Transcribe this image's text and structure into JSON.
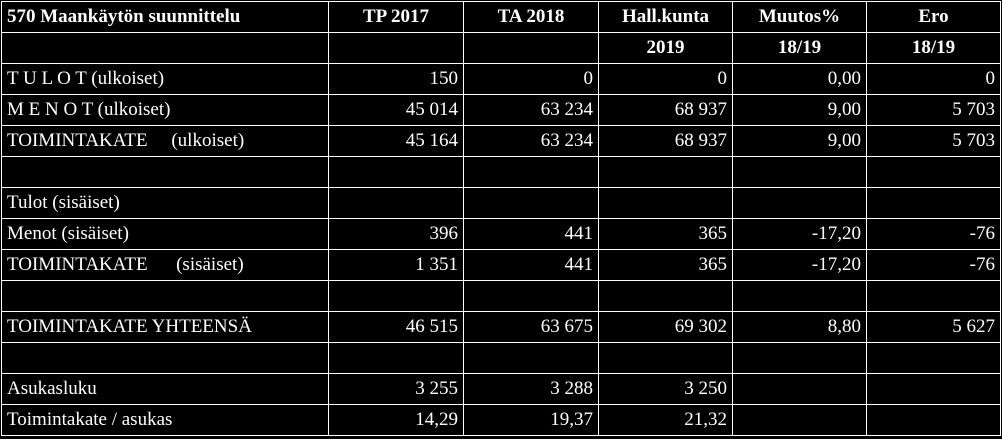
{
  "header_row1": {
    "title": "570 Maankäytön suunnittelu",
    "col1": "TP 2017",
    "col2": "TA 2018",
    "col3": "Hall.kunta",
    "col4": "Muutos%",
    "col5": "Ero"
  },
  "header_row2": {
    "col3": "2019",
    "col4": "18/19",
    "col5": "18/19"
  },
  "rows": [
    {
      "label": "T U L O T (ulkoiset)",
      "tp2017": "150",
      "ta2018": "0",
      "hall": "0",
      "muutos": "0,00",
      "ero": "0"
    },
    {
      "label": "M E N O T (ulkoiset)",
      "tp2017": "45 014",
      "ta2018": "63 234",
      "hall": "68 937",
      "muutos": "9,00",
      "ero": "5 703"
    },
    {
      "label": "TOIMINTAKATE     (ulkoiset)",
      "tp2017": "45 164",
      "ta2018": "63 234",
      "hall": "68 937",
      "muutos": "9,00",
      "ero": "5 703"
    },
    {
      "label": "",
      "tp2017": "",
      "ta2018": "",
      "hall": "",
      "muutos": "",
      "ero": ""
    },
    {
      "label": "Tulot (sisäiset)",
      "tp2017": "",
      "ta2018": "",
      "hall": "",
      "muutos": "",
      "ero": ""
    },
    {
      "label": "Menot (sisäiset)",
      "tp2017": "396",
      "ta2018": "441",
      "hall": "365",
      "muutos": "-17,20",
      "ero": "-76"
    },
    {
      "label": "TOIMINTAKATE      (sisäiset)",
      "tp2017": "1 351",
      "ta2018": "441",
      "hall": "365",
      "muutos": "-17,20",
      "ero": "-76"
    },
    {
      "label": "",
      "tp2017": "",
      "ta2018": "",
      "hall": "",
      "muutos": "",
      "ero": ""
    },
    {
      "label": "TOIMINTAKATE YHTEENSÄ",
      "tp2017": "46 515",
      "ta2018": "63 675",
      "hall": "69 302",
      "muutos": "8,80",
      "ero": "5 627"
    },
    {
      "label": "",
      "tp2017": "",
      "ta2018": "",
      "hall": "",
      "muutos": "",
      "ero": ""
    },
    {
      "label": "Asukasluku",
      "tp2017": "3 255",
      "ta2018": "3 288",
      "hall": "3 250",
      "muutos": "",
      "ero": ""
    },
    {
      "label": "Toimintakate / asukas",
      "tp2017": "14,29",
      "ta2018": "19,37",
      "hall": "21,32",
      "muutos": "",
      "ero": ""
    }
  ]
}
